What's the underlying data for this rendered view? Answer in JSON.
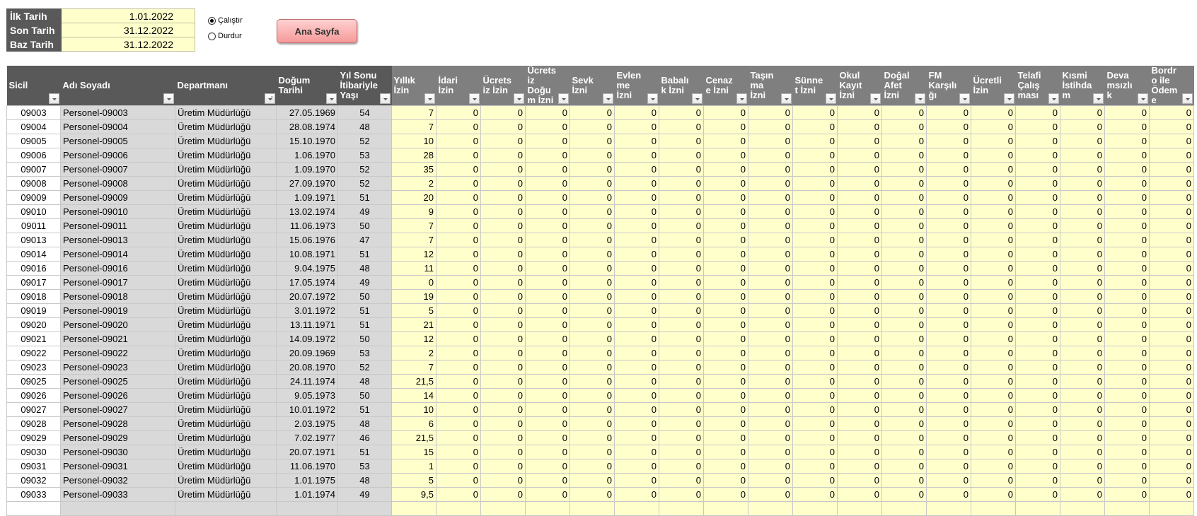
{
  "params": [
    {
      "label": "İlk Tarih",
      "value": "1.01.2022"
    },
    {
      "label": "Son Tarih",
      "value": "31.12.2022"
    },
    {
      "label": "Baz Tarih",
      "value": "31.12.2022"
    }
  ],
  "radios": [
    {
      "label": "Çalıştır",
      "checked": true
    },
    {
      "label": "Durdur",
      "checked": false
    }
  ],
  "home_button": "Ana Sayfa",
  "colors": {
    "header_dark": "#595959",
    "header_light": "#7f7f7f",
    "leave_cell": "#ffffcc",
    "info_cell": "#d9d9d9",
    "button": "#f5a0a0"
  },
  "columns": [
    "Sicil",
    "Adı Soyadı",
    "Departmanı",
    "Doğum Tarihi",
    "Yıl Sonu İtibariyle Yaşı",
    "Yıllık İzin",
    "İdari İzin",
    "Ücretsiz İzin",
    "Ücretsiz Doğum İzni",
    "Sevk İzni",
    "Evlenme İzni",
    "Babalık İzni",
    "Cenaze İzni",
    "Taşınma İzni",
    "Sünnet İzni",
    "Okul Kayıt İzni",
    "Doğal Afet İzni",
    "FM Karşılığı",
    "Ücretli İzin",
    "Telafi Çalışması",
    "Kısmi İstihdam",
    "Devamsızlık",
    "Bordro ile Ödeme"
  ],
  "rows": [
    {
      "sicil": "09003",
      "ad": "Personel-09003",
      "dep": "Üretim Müdürlüğü",
      "dogum": "27.05.1969",
      "yas": "54",
      "izin": [
        "7",
        0,
        0,
        0,
        0,
        0,
        0,
        0,
        0,
        0,
        0,
        0,
        0,
        0,
        0,
        0,
        0,
        0
      ]
    },
    {
      "sicil": "09004",
      "ad": "Personel-09004",
      "dep": "Üretim Müdürlüğü",
      "dogum": "28.08.1974",
      "yas": "48",
      "izin": [
        "7",
        0,
        0,
        0,
        0,
        0,
        0,
        0,
        0,
        0,
        0,
        0,
        0,
        0,
        0,
        0,
        0,
        0
      ]
    },
    {
      "sicil": "09005",
      "ad": "Personel-09005",
      "dep": "Üretim Müdürlüğü",
      "dogum": "15.10.1970",
      "yas": "52",
      "izin": [
        "10",
        0,
        0,
        0,
        0,
        0,
        0,
        0,
        0,
        0,
        0,
        0,
        0,
        0,
        0,
        0,
        0,
        0
      ]
    },
    {
      "sicil": "09006",
      "ad": "Personel-09006",
      "dep": "Üretim Müdürlüğü",
      "dogum": "1.06.1970",
      "yas": "53",
      "izin": [
        "28",
        0,
        0,
        0,
        0,
        0,
        0,
        0,
        0,
        0,
        0,
        0,
        0,
        0,
        0,
        0,
        0,
        0
      ]
    },
    {
      "sicil": "09007",
      "ad": "Personel-09007",
      "dep": "Üretim Müdürlüğü",
      "dogum": "1.09.1970",
      "yas": "52",
      "izin": [
        "35",
        0,
        0,
        0,
        0,
        0,
        0,
        0,
        0,
        0,
        0,
        0,
        0,
        0,
        0,
        0,
        0,
        0
      ]
    },
    {
      "sicil": "09008",
      "ad": "Personel-09008",
      "dep": "Üretim Müdürlüğü",
      "dogum": "27.09.1970",
      "yas": "52",
      "izin": [
        "2",
        0,
        0,
        0,
        0,
        0,
        0,
        0,
        0,
        0,
        0,
        0,
        0,
        0,
        0,
        0,
        0,
        0
      ]
    },
    {
      "sicil": "09009",
      "ad": "Personel-09009",
      "dep": "Üretim Müdürlüğü",
      "dogum": "1.09.1971",
      "yas": "51",
      "izin": [
        "20",
        0,
        0,
        0,
        0,
        0,
        0,
        0,
        0,
        0,
        0,
        0,
        0,
        0,
        0,
        0,
        0,
        0
      ]
    },
    {
      "sicil": "09010",
      "ad": "Personel-09010",
      "dep": "Üretim Müdürlüğü",
      "dogum": "13.02.1974",
      "yas": "49",
      "izin": [
        "9",
        0,
        0,
        0,
        0,
        0,
        0,
        0,
        0,
        0,
        0,
        0,
        0,
        0,
        0,
        0,
        0,
        0
      ]
    },
    {
      "sicil": "09011",
      "ad": "Personel-09011",
      "dep": "Üretim Müdürlüğü",
      "dogum": "11.06.1973",
      "yas": "50",
      "izin": [
        "7",
        0,
        0,
        0,
        0,
        0,
        0,
        0,
        0,
        0,
        0,
        0,
        0,
        0,
        0,
        0,
        0,
        0
      ]
    },
    {
      "sicil": "09013",
      "ad": "Personel-09013",
      "dep": "Üretim Müdürlüğü",
      "dogum": "15.06.1976",
      "yas": "47",
      "izin": [
        "7",
        0,
        0,
        0,
        0,
        0,
        0,
        0,
        0,
        0,
        0,
        0,
        0,
        0,
        0,
        0,
        0,
        0
      ]
    },
    {
      "sicil": "09014",
      "ad": "Personel-09014",
      "dep": "Üretim Müdürlüğü",
      "dogum": "10.08.1971",
      "yas": "51",
      "izin": [
        "12",
        0,
        0,
        0,
        0,
        0,
        0,
        0,
        0,
        0,
        0,
        0,
        0,
        0,
        0,
        0,
        0,
        0
      ]
    },
    {
      "sicil": "09016",
      "ad": "Personel-09016",
      "dep": "Üretim Müdürlüğü",
      "dogum": "9.04.1975",
      "yas": "48",
      "izin": [
        "11",
        0,
        0,
        0,
        0,
        0,
        0,
        0,
        0,
        0,
        0,
        0,
        0,
        0,
        0,
        0,
        0,
        0
      ]
    },
    {
      "sicil": "09017",
      "ad": "Personel-09017",
      "dep": "Üretim Müdürlüğü",
      "dogum": "17.05.1974",
      "yas": "49",
      "izin": [
        "0",
        0,
        0,
        0,
        0,
        0,
        0,
        0,
        0,
        0,
        0,
        0,
        0,
        0,
        0,
        0,
        0,
        0
      ]
    },
    {
      "sicil": "09018",
      "ad": "Personel-09018",
      "dep": "Üretim Müdürlüğü",
      "dogum": "20.07.1972",
      "yas": "50",
      "izin": [
        "19",
        0,
        0,
        0,
        0,
        0,
        0,
        0,
        0,
        0,
        0,
        0,
        0,
        0,
        0,
        0,
        0,
        0
      ]
    },
    {
      "sicil": "09019",
      "ad": "Personel-09019",
      "dep": "Üretim Müdürlüğü",
      "dogum": "3.01.1972",
      "yas": "51",
      "izin": [
        "5",
        0,
        0,
        0,
        0,
        0,
        0,
        0,
        0,
        0,
        0,
        0,
        0,
        0,
        0,
        0,
        0,
        0
      ]
    },
    {
      "sicil": "09020",
      "ad": "Personel-09020",
      "dep": "Üretim Müdürlüğü",
      "dogum": "13.11.1971",
      "yas": "51",
      "izin": [
        "21",
        0,
        0,
        0,
        0,
        0,
        0,
        0,
        0,
        0,
        0,
        0,
        0,
        0,
        0,
        0,
        0,
        0
      ]
    },
    {
      "sicil": "09021",
      "ad": "Personel-09021",
      "dep": "Üretim Müdürlüğü",
      "dogum": "14.09.1972",
      "yas": "50",
      "izin": [
        "12",
        0,
        0,
        0,
        0,
        0,
        0,
        0,
        0,
        0,
        0,
        0,
        0,
        0,
        0,
        0,
        0,
        0
      ]
    },
    {
      "sicil": "09022",
      "ad": "Personel-09022",
      "dep": "Üretim Müdürlüğü",
      "dogum": "20.09.1969",
      "yas": "53",
      "izin": [
        "2",
        0,
        0,
        0,
        0,
        0,
        0,
        0,
        0,
        0,
        0,
        0,
        0,
        0,
        0,
        0,
        0,
        0
      ]
    },
    {
      "sicil": "09023",
      "ad": "Personel-09023",
      "dep": "Üretim Müdürlüğü",
      "dogum": "20.08.1970",
      "yas": "52",
      "izin": [
        "7",
        0,
        0,
        0,
        0,
        0,
        0,
        0,
        0,
        0,
        0,
        0,
        0,
        0,
        0,
        0,
        0,
        0
      ]
    },
    {
      "sicil": "09025",
      "ad": "Personel-09025",
      "dep": "Üretim Müdürlüğü",
      "dogum": "24.11.1974",
      "yas": "48",
      "izin": [
        "21,5",
        0,
        0,
        0,
        0,
        0,
        0,
        0,
        0,
        0,
        0,
        0,
        0,
        0,
        0,
        0,
        0,
        0
      ]
    },
    {
      "sicil": "09026",
      "ad": "Personel-09026",
      "dep": "Üretim Müdürlüğü",
      "dogum": "9.05.1973",
      "yas": "50",
      "izin": [
        "14",
        0,
        0,
        0,
        0,
        0,
        0,
        0,
        0,
        0,
        0,
        0,
        0,
        0,
        0,
        0,
        0,
        0
      ]
    },
    {
      "sicil": "09027",
      "ad": "Personel-09027",
      "dep": "Üretim Müdürlüğü",
      "dogum": "10.01.1972",
      "yas": "51",
      "izin": [
        "10",
        0,
        0,
        0,
        0,
        0,
        0,
        0,
        0,
        0,
        0,
        0,
        0,
        0,
        0,
        0,
        0,
        0
      ]
    },
    {
      "sicil": "09028",
      "ad": "Personel-09028",
      "dep": "Üretim Müdürlüğü",
      "dogum": "2.03.1975",
      "yas": "48",
      "izin": [
        "6",
        0,
        0,
        0,
        0,
        0,
        0,
        0,
        0,
        0,
        0,
        0,
        0,
        0,
        0,
        0,
        0,
        0
      ]
    },
    {
      "sicil": "09029",
      "ad": "Personel-09029",
      "dep": "Üretim Müdürlüğü",
      "dogum": "7.02.1977",
      "yas": "46",
      "izin": [
        "21,5",
        0,
        0,
        0,
        0,
        0,
        0,
        0,
        0,
        0,
        0,
        0,
        0,
        0,
        0,
        0,
        0,
        0
      ]
    },
    {
      "sicil": "09030",
      "ad": "Personel-09030",
      "dep": "Üretim Müdürlüğü",
      "dogum": "20.07.1971",
      "yas": "51",
      "izin": [
        "15",
        0,
        0,
        0,
        0,
        0,
        0,
        0,
        0,
        0,
        0,
        0,
        0,
        0,
        0,
        0,
        0,
        0
      ]
    },
    {
      "sicil": "09031",
      "ad": "Personel-09031",
      "dep": "Üretim Müdürlüğü",
      "dogum": "11.06.1970",
      "yas": "53",
      "izin": [
        "1",
        0,
        0,
        0,
        0,
        0,
        0,
        0,
        0,
        0,
        0,
        0,
        0,
        0,
        0,
        0,
        0,
        0
      ]
    },
    {
      "sicil": "09032",
      "ad": "Personel-09032",
      "dep": "Üretim Müdürlüğü",
      "dogum": "1.01.1975",
      "yas": "48",
      "izin": [
        "5",
        0,
        0,
        0,
        0,
        0,
        0,
        0,
        0,
        0,
        0,
        0,
        0,
        0,
        0,
        0,
        0,
        0
      ]
    },
    {
      "sicil": "09033",
      "ad": "Personel-09033",
      "dep": "Üretim Müdürlüğü",
      "dogum": "1.01.1974",
      "yas": "49",
      "izin": [
        "9,5",
        0,
        0,
        0,
        0,
        0,
        0,
        0,
        0,
        0,
        0,
        0,
        0,
        0,
        0,
        0,
        0,
        0
      ]
    }
  ]
}
